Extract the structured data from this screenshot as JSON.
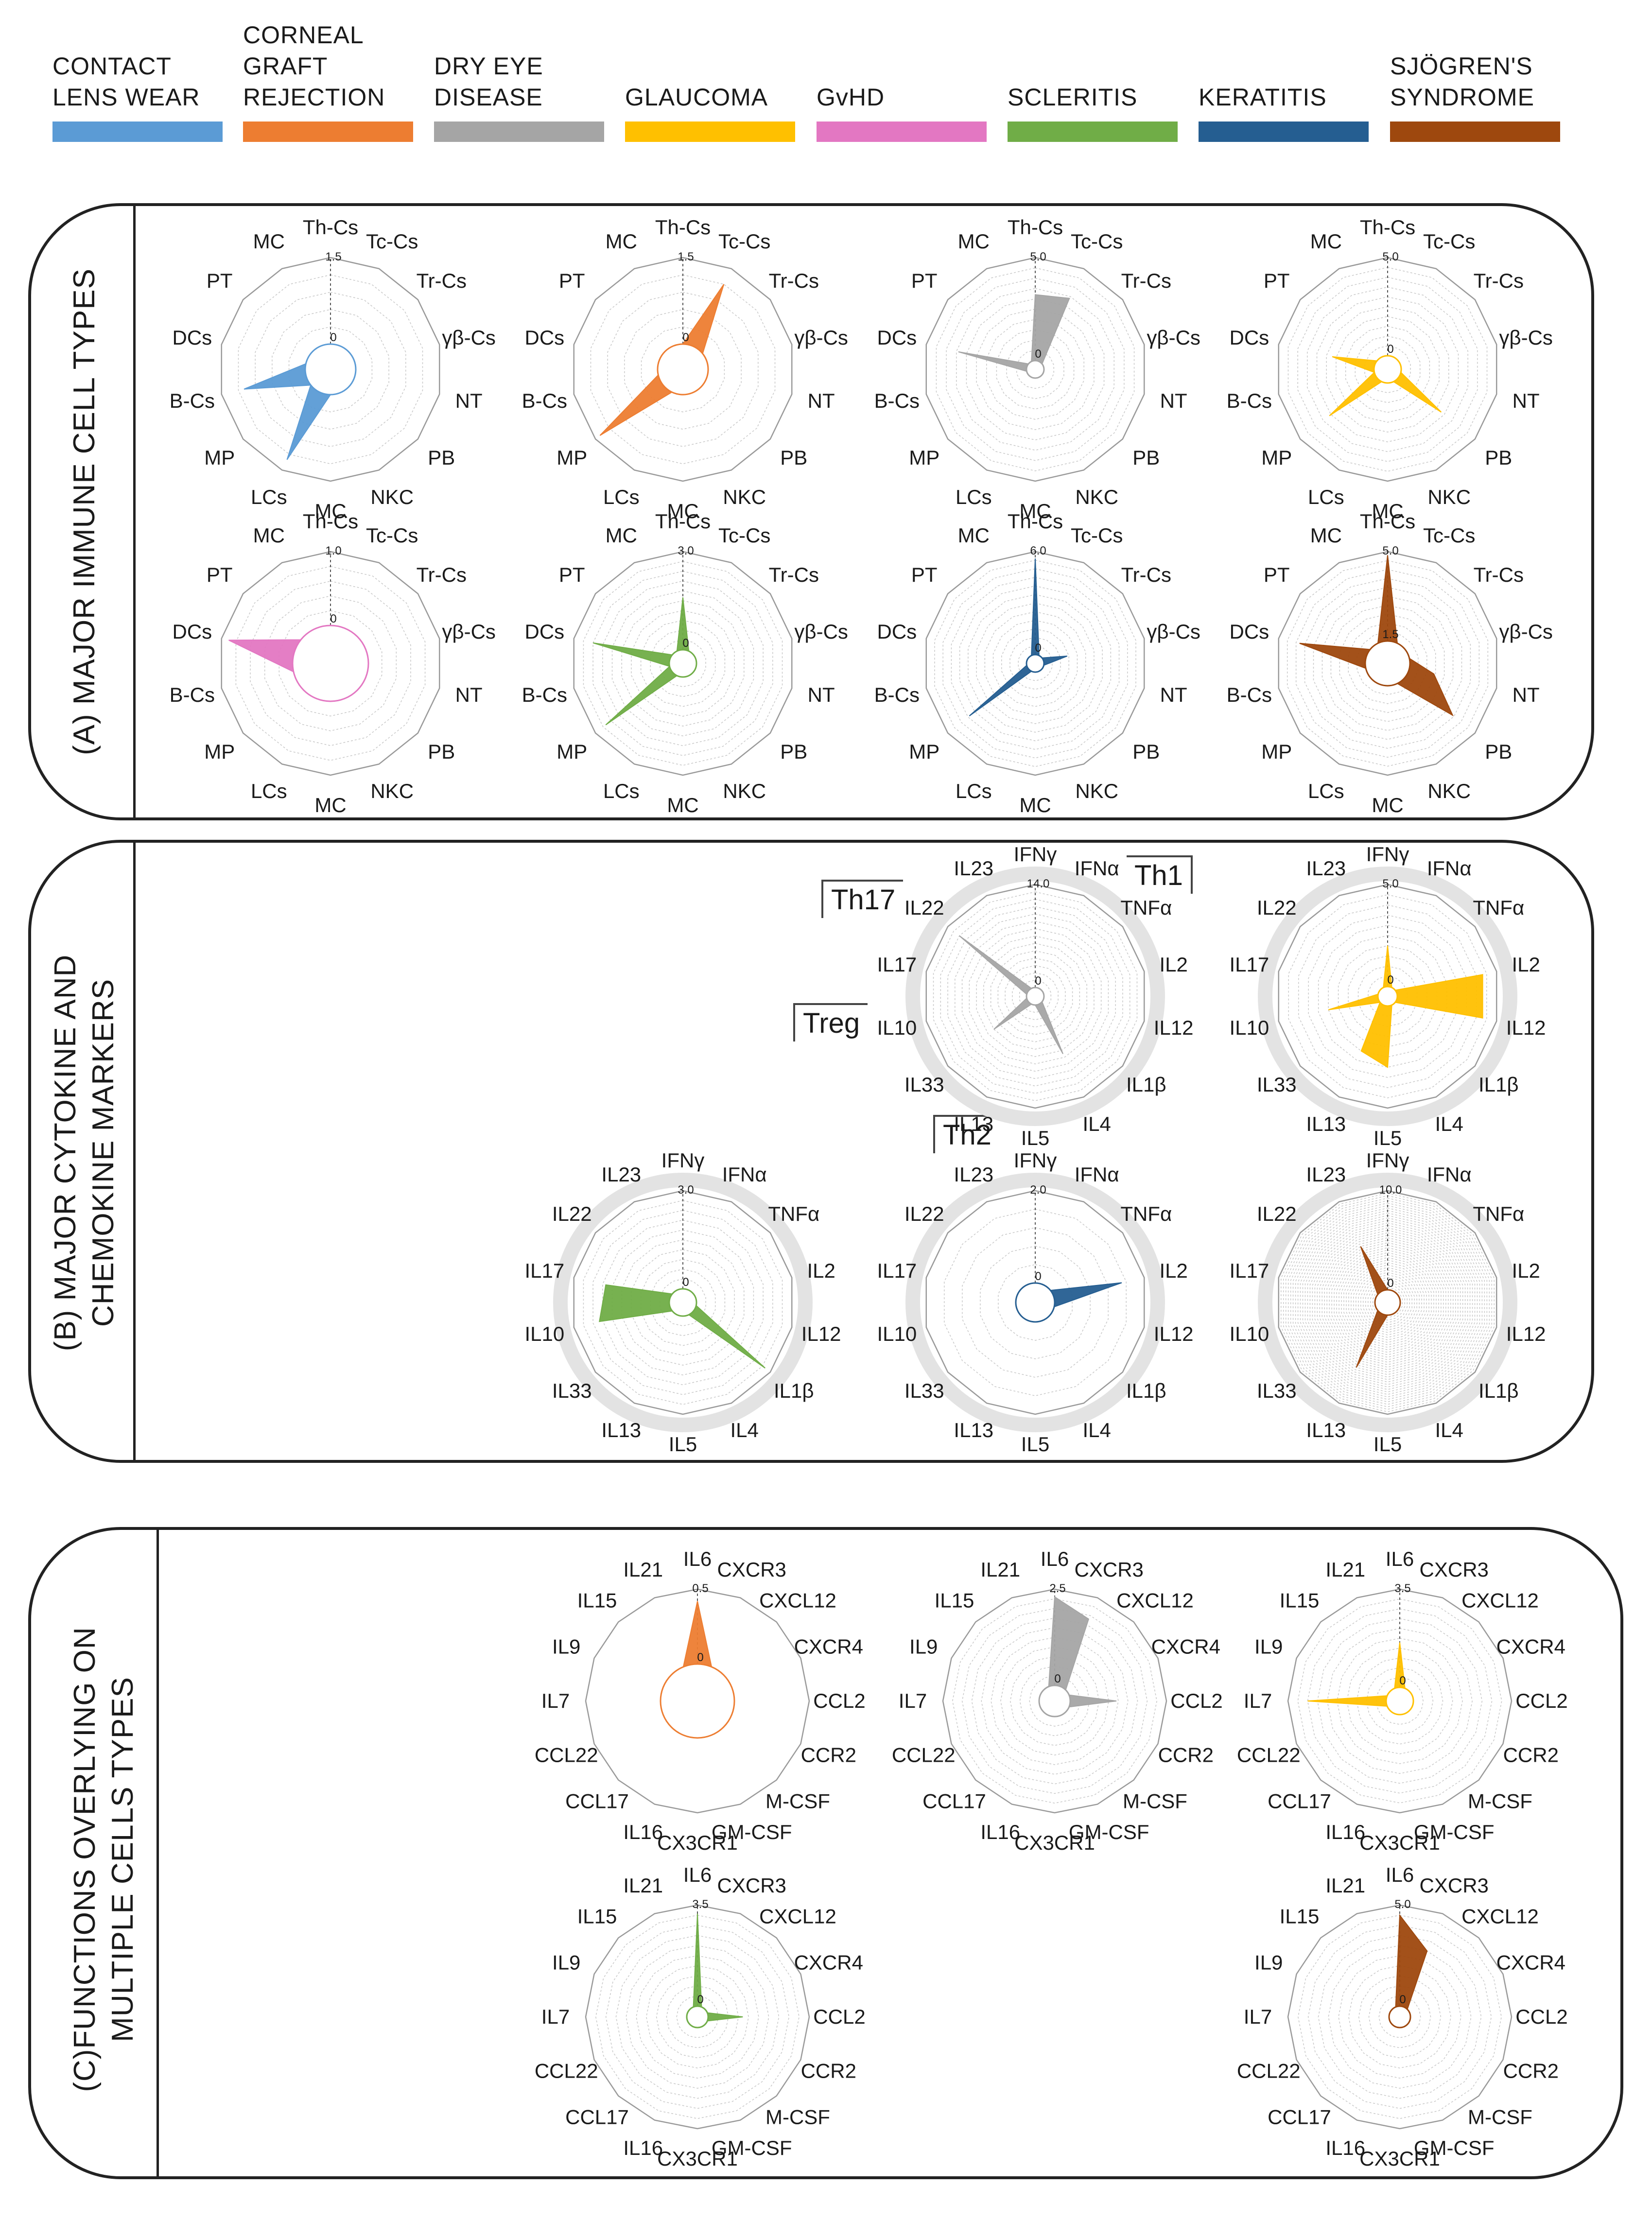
{
  "legend": [
    {
      "label": "CONTACT\nLENS WEAR",
      "color": "#5b9bd5"
    },
    {
      "label": "CORNEAL\nGRAFT\nREJECTION",
      "color": "#ed7d31"
    },
    {
      "label": "DRY EYE\nDISEASE",
      "color": "#a5a5a5"
    },
    {
      "label": "GLAUCOMA",
      "color": "#ffc000"
    },
    {
      "label": "GvHD",
      "color": "#e377c2"
    },
    {
      "label": "SCLERITIS",
      "color": "#70ad47"
    },
    {
      "label": "KERATITIS",
      "color": "#255e91"
    },
    {
      "label": "SJÖGREN'S\nSYNDROME",
      "color": "#9e480e"
    }
  ],
  "panels": {
    "a_title": "(A) MAJOR IMMUNE CELL TYPES",
    "b_title": "(B) MAJOR CYTOKINE AND\nCHEMOKINE MARKERS",
    "c_title": "(C)FUNCTIONS OVERLYING ON\nMULTIPLE CELLS TYPES"
  },
  "groups": {
    "th17": "Th17",
    "th1": "Th1",
    "treg": "Treg",
    "th2": "Th2"
  },
  "chart_data": [
    {
      "type": "radar",
      "panel": "A",
      "disease": "CONTACT LENS WEAR",
      "color": "#5b9bd5",
      "axes": [
        "Th-Cs",
        "Tc-Cs",
        "Tr-Cs",
        "γβ-Cs",
        "NT",
        "PB",
        "NKC",
        "MC",
        "LCs",
        "MP",
        "B-Cs",
        "DCs",
        "PT",
        "MC"
      ],
      "scale_max": "1.5",
      "scale_min": "0",
      "rings": 5,
      "values": [
        0,
        0,
        0,
        0,
        0,
        0,
        0,
        0,
        1.3,
        0,
        1.1,
        0,
        0,
        0
      ]
    },
    {
      "type": "radar",
      "panel": "A",
      "disease": "CORNEAL GRAFT REJECTION",
      "color": "#ed7d31",
      "axes": [
        "Th-Cs",
        "Tc-Cs",
        "Tr-Cs",
        "γβ-Cs",
        "NT",
        "PB",
        "NKC",
        "MC",
        "LCs",
        "MP",
        "B-Cs",
        "DCs",
        "PT",
        "MC"
      ],
      "scale_max": "1.5",
      "scale_min": "0",
      "rings": 5,
      "values": [
        0,
        1.2,
        0,
        0,
        0,
        0,
        0,
        0,
        0,
        1.4,
        0,
        0,
        0,
        0
      ]
    },
    {
      "type": "radar",
      "panel": "A",
      "disease": "DRY EYE DISEASE",
      "color": "#a5a5a5",
      "axes": [
        "Th-Cs",
        "Tc-Cs",
        "Tr-Cs",
        "γβ-Cs",
        "NT",
        "PB",
        "NKC",
        "MC",
        "LCs",
        "MP",
        "B-Cs",
        "DCs",
        "PT",
        "MC"
      ],
      "scale_max": "5.0",
      "scale_min": "0",
      "rings": 10,
      "values": [
        3.2,
        3.4,
        0,
        0,
        0,
        0,
        0,
        0,
        0,
        0,
        0,
        3.4,
        0,
        0
      ]
    },
    {
      "type": "radar",
      "panel": "A",
      "disease": "GLAUCOMA",
      "color": "#ffc000",
      "axes": [
        "Th-Cs",
        "Tc-Cs",
        "Tr-Cs",
        "γβ-Cs",
        "NT",
        "PB",
        "NKC",
        "MC",
        "LCs",
        "MP",
        "B-Cs",
        "DCs",
        "PT",
        "MC"
      ],
      "scale_max": "5.0",
      "scale_min": "0",
      "rings": 10,
      "values": [
        0,
        0,
        0,
        0,
        0,
        2.8,
        0,
        0,
        0,
        3.1,
        0,
        2.2,
        0,
        0
      ]
    },
    {
      "type": "radar",
      "panel": "A",
      "disease": "GvHD",
      "color": "#e377c2",
      "axes": [
        "Th-Cs",
        "Tc-Cs",
        "Tr-Cs",
        "γβ-Cs",
        "NT",
        "PB",
        "NKC",
        "MC",
        "LCs",
        "MP",
        "B-Cs",
        "DCs",
        "PT",
        "MC"
      ],
      "scale_max": "1.0",
      "scale_min": "0",
      "rings": 5,
      "values": [
        0,
        0,
        0,
        0,
        0,
        0,
        0,
        0,
        0,
        0,
        0,
        0.9,
        0,
        0
      ]
    },
    {
      "type": "radar",
      "panel": "A",
      "disease": "SCLERITIS",
      "color": "#70ad47",
      "axes": [
        "Th-Cs",
        "Tc-Cs",
        "Tr-Cs",
        "γβ-Cs",
        "NT",
        "PB",
        "NKC",
        "MC",
        "LCs",
        "MP",
        "B-Cs",
        "DCs",
        "PT",
        "MC"
      ],
      "scale_max": "3.0",
      "scale_min": "0",
      "rings": 10,
      "values": [
        1.6,
        0,
        0,
        0,
        0,
        0,
        0,
        0,
        0,
        2.6,
        0,
        2.4,
        0,
        0
      ]
    },
    {
      "type": "radar",
      "panel": "A",
      "disease": "KERATITIS",
      "color": "#255e91",
      "axes": [
        "Th-Cs",
        "Tc-Cs",
        "Tr-Cs",
        "γβ-Cs",
        "NT",
        "PB",
        "NKC",
        "MC",
        "LCs",
        "MP",
        "B-Cs",
        "DCs",
        "PT",
        "MC"
      ],
      "scale_max": "6.0",
      "scale_min": "0",
      "rings": 12,
      "values": [
        5.6,
        0,
        0,
        1.4,
        0,
        0,
        0,
        0,
        0,
        4.4,
        0,
        0,
        0,
        0
      ]
    },
    {
      "type": "radar",
      "panel": "A",
      "disease": "SJÖGREN'S SYNDROME",
      "color": "#9e480e",
      "axes": [
        "Th-Cs",
        "Tc-Cs",
        "Tr-Cs",
        "γβ-Cs",
        "NT",
        "PB",
        "NKC",
        "MC",
        "LCs",
        "MP",
        "B-Cs",
        "DCs",
        "PT",
        "MC"
      ],
      "scale_max": "5.0",
      "scale_min": "1.5",
      "rings": 10,
      "values": [
        4.8,
        0,
        0,
        0,
        1.4,
        3.4,
        0,
        0,
        0,
        0,
        0,
        3.8,
        0,
        0
      ]
    },
    {
      "type": "radar",
      "panel": "B",
      "disease": "DRY EYE DISEASE",
      "color": "#a5a5a5",
      "axes": [
        "IFNγ",
        "IFNα",
        "TNFα",
        "IL2",
        "IL12",
        "IL1β",
        "IL4",
        "IL5",
        "IL13",
        "IL33",
        "IL10",
        "IL17",
        "IL22",
        "IL23"
      ],
      "scale_max": "14.0",
      "scale_min": "0",
      "rings": 14,
      "values": [
        0,
        0,
        0,
        0,
        0,
        0,
        7.5,
        0,
        0,
        6.0,
        0,
        0,
        12.0,
        0
      ]
    },
    {
      "type": "radar",
      "panel": "B",
      "disease": "GLAUCOMA",
      "color": "#ffc000",
      "axes": [
        "IFNγ",
        "IFNα",
        "TNFα",
        "IL2",
        "IL12",
        "IL1β",
        "IL4",
        "IL5",
        "IL13",
        "IL33",
        "IL10",
        "IL17",
        "IL22",
        "IL23"
      ],
      "scale_max": "5.0",
      "scale_min": "0",
      "rings": 10,
      "values": [
        2.0,
        0,
        0,
        4.3,
        4.3,
        0,
        0,
        3.0,
        2.5,
        0,
        2.5,
        0,
        0,
        0
      ]
    },
    {
      "type": "radar",
      "panel": "B",
      "disease": "SCLERITIS",
      "color": "#70ad47",
      "axes": [
        "IFNγ",
        "IFNα",
        "TNFα",
        "IL2",
        "IL12",
        "IL1β",
        "IL4",
        "IL5",
        "IL13",
        "IL33",
        "IL10",
        "IL17",
        "IL22",
        "IL23"
      ],
      "scale_max": "3.0",
      "scale_min": "0",
      "rings": 10,
      "values": [
        0,
        0,
        0,
        0,
        0,
        2.8,
        0,
        0,
        0,
        0,
        2.2,
        2.0,
        0,
        0
      ]
    },
    {
      "type": "radar",
      "panel": "B",
      "disease": "KERATITIS",
      "color": "#255e91",
      "axes": [
        "IFNγ",
        "IFNα",
        "TNFα",
        "IL2",
        "IL12",
        "IL1β",
        "IL4",
        "IL5",
        "IL13",
        "IL33",
        "IL10",
        "IL17",
        "IL22",
        "IL23"
      ],
      "scale_max": "2.0",
      "scale_min": "0",
      "rings": 5,
      "values": [
        0,
        0,
        0,
        1.5,
        0,
        0,
        0,
        0,
        0,
        0,
        0,
        0,
        0,
        0
      ]
    },
    {
      "type": "radar",
      "panel": "B",
      "disease": "SJÖGREN'S SYNDROME",
      "color": "#9e480e",
      "axes": [
        "IFNγ",
        "IFNα",
        "TNFα",
        "IL2",
        "IL12",
        "IL1β",
        "IL4",
        "IL5",
        "IL13",
        "IL33",
        "IL10",
        "IL17",
        "IL22",
        "IL23"
      ],
      "scale_max": "10.0",
      "scale_min": "0",
      "rings": 40,
      "values": [
        0,
        0,
        0,
        0,
        0,
        0,
        0,
        0,
        6.0,
        0,
        0,
        0,
        0,
        5.0
      ]
    },
    {
      "type": "radar",
      "panel": "C",
      "disease": "CORNEAL GRAFT REJECTION",
      "color": "#ed7d31",
      "axes": [
        "IL6",
        "CXCR3",
        "CXCL12",
        "CXCR4",
        "CCL2",
        "CCR2",
        "M-CSF",
        "GM-CSF",
        "CX3CR1",
        "IL16",
        "CCL17",
        "CCL22",
        "IL7",
        "IL9",
        "IL15",
        "IL21"
      ],
      "scale_max": "0.5",
      "scale_min": "0",
      "rings": 1,
      "values": [
        0.42,
        0,
        0,
        0,
        0,
        0,
        0,
        0,
        0,
        0,
        0,
        0,
        0,
        0,
        0,
        0
      ]
    },
    {
      "type": "radar",
      "panel": "C",
      "disease": "DRY EYE DISEASE",
      "color": "#a5a5a5",
      "axes": [
        "IL6",
        "CXCR3",
        "CXCL12",
        "CXCR4",
        "CCL2",
        "CCR2",
        "M-CSF",
        "GM-CSF",
        "CX3CR1",
        "IL16",
        "CCL17",
        "CCL22",
        "IL7",
        "IL9",
        "IL15",
        "IL21"
      ],
      "scale_max": "2.5",
      "scale_min": "0",
      "rings": 10,
      "values": [
        2.3,
        1.9,
        0,
        0,
        1.2,
        0,
        0,
        0,
        0,
        0,
        0,
        0,
        0,
        0,
        0,
        0
      ]
    },
    {
      "type": "radar",
      "panel": "C",
      "disease": "GLAUCOMA",
      "color": "#ffc000",
      "axes": [
        "IL6",
        "CXCR3",
        "CXCL12",
        "CXCR4",
        "CCL2",
        "CCR2",
        "M-CSF",
        "GM-CSF",
        "CX3CR1",
        "IL16",
        "CCL17",
        "CCL22",
        "IL7",
        "IL9",
        "IL15",
        "IL21"
      ],
      "scale_max": "3.5",
      "scale_min": "0",
      "rings": 10,
      "values": [
        1.6,
        0,
        0,
        0,
        0,
        0,
        0,
        0,
        0,
        0,
        0,
        0,
        2.8,
        0,
        0,
        0
      ]
    },
    {
      "type": "radar",
      "panel": "C",
      "disease": "SCLERITIS",
      "color": "#70ad47",
      "axes": [
        "IL6",
        "CXCR3",
        "CXCL12",
        "CXCR4",
        "CCL2",
        "CCR2",
        "M-CSF",
        "GM-CSF",
        "CX3CR1",
        "IL16",
        "CCL17",
        "CCL22",
        "IL7",
        "IL9",
        "IL15",
        "IL21"
      ],
      "scale_max": "3.5",
      "scale_min": "0",
      "rings": 10,
      "values": [
        3.2,
        0,
        0,
        0,
        1.2,
        0,
        0,
        0,
        0,
        0,
        0,
        0,
        0,
        0,
        0,
        0
      ]
    },
    {
      "type": "radar",
      "panel": "C",
      "disease": "SJÖGREN'S SYNDROME",
      "color": "#9e480e",
      "axes": [
        "IL6",
        "CXCR3",
        "CXCL12",
        "CXCR4",
        "CCL2",
        "CCR2",
        "M-CSF",
        "GM-CSF",
        "CX3CR1",
        "IL16",
        "CCL17",
        "CCL22",
        "IL7",
        "IL9",
        "IL15",
        "IL21"
      ],
      "scale_max": "5.0",
      "scale_min": "0",
      "rings": 10,
      "values": [
        4.5,
        3.0,
        0,
        0,
        0,
        0,
        0,
        0,
        0,
        0,
        0,
        0,
        0,
        0,
        0,
        0
      ]
    }
  ]
}
